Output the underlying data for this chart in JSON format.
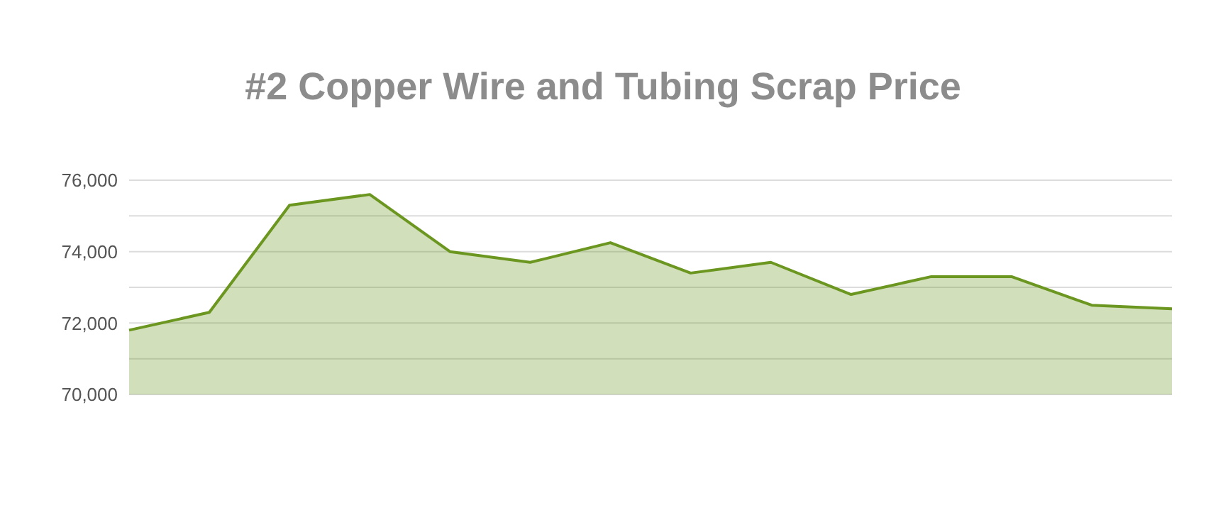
{
  "chart_data": {
    "type": "area",
    "title": "#2 Copper Wire and Tubing Scrap Price",
    "categories": [
      null,
      null,
      null,
      null,
      null,
      null,
      null,
      null,
      null,
      null,
      null,
      null,
      null,
      null
    ],
    "series": [
      {
        "color": "#6b961f",
        "values": [
          71800,
          72300,
          75300,
          75600,
          74000,
          73700,
          74250,
          73400,
          73700,
          72800,
          73300,
          73300,
          72500,
          72400
        ]
      }
    ],
    "ylim": [
      70000,
      76000
    ],
    "yticks": [
      "70,000",
      {
        "value": 71000,
        "label": null
      },
      {
        "value": 72000,
        "label": "72,000"
      },
      {
        "value": 73000,
        "label": null
      },
      {
        "value": 74000,
        "label": "74,000"
      },
      {
        "value": 75000,
        "label": null
      },
      {
        "value": 76000,
        "label": "76,000"
      }
    ],
    "grid": "y",
    "legend": false,
    "marker": "none",
    "line_style": "solid"
  }
}
